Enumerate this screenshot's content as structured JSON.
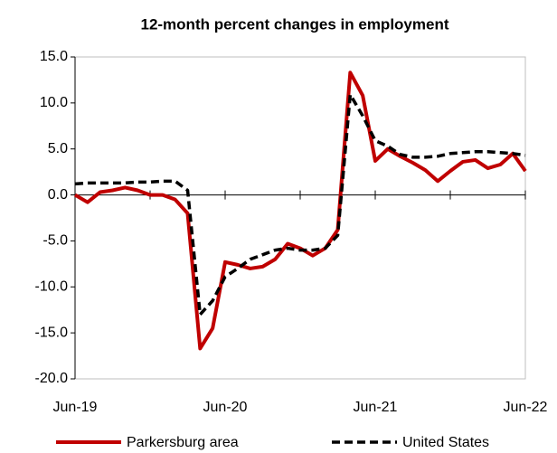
{
  "chart_data": {
    "type": "line",
    "title": "12-month percent changes in employment",
    "categories": [
      "Jun-19",
      null,
      null,
      null,
      null,
      null,
      null,
      null,
      null,
      null,
      null,
      null,
      "Jun-20",
      null,
      null,
      null,
      null,
      null,
      null,
      null,
      null,
      null,
      null,
      null,
      "Jun-21",
      null,
      null,
      null,
      null,
      null,
      null,
      null,
      null,
      null,
      null,
      null,
      "Jun-22"
    ],
    "series": [
      {
        "name": "Parkersburg area",
        "color": "#c00000",
        "dash": false,
        "values": [
          0.0,
          -0.8,
          0.3,
          0.5,
          0.8,
          0.5,
          0.0,
          0.0,
          -0.5,
          -2.0,
          -16.7,
          -14.5,
          -7.3,
          -7.6,
          -8.0,
          -7.8,
          -7.0,
          -5.3,
          -5.8,
          -6.6,
          -5.8,
          -3.8,
          13.3,
          10.8,
          3.7,
          5.0,
          4.2,
          3.5,
          2.7,
          1.5,
          2.6,
          3.6,
          3.8,
          2.9,
          3.3,
          4.5,
          2.6
        ]
      },
      {
        "name": "United States",
        "color": "#000000",
        "dash": true,
        "values": [
          1.2,
          1.3,
          1.3,
          1.3,
          1.3,
          1.4,
          1.4,
          1.5,
          1.5,
          0.5,
          -13.0,
          -11.5,
          -8.9,
          -8.0,
          -7.0,
          -6.5,
          -6.0,
          -5.8,
          -6.0,
          -6.0,
          -5.8,
          -4.4,
          10.9,
          8.6,
          5.9,
          5.3,
          4.4,
          4.1,
          4.1,
          4.2,
          4.5,
          4.6,
          4.7,
          4.7,
          4.6,
          4.5,
          4.3
        ]
      }
    ],
    "ylim": [
      -20,
      15
    ],
    "yticks": [
      {
        "value": -20,
        "label": "-20.0"
      },
      {
        "value": -15,
        "label": "-15.0"
      },
      {
        "value": -10,
        "label": "-10.0"
      },
      {
        "value": -5,
        "label": "-5.0"
      },
      {
        "value": 0,
        "label": "0.0"
      },
      {
        "value": 5,
        "label": "5.0"
      },
      {
        "value": 10,
        "label": "10.0"
      },
      {
        "value": 15,
        "label": "15.0"
      }
    ],
    "grid": false,
    "legend": "bottom"
  }
}
